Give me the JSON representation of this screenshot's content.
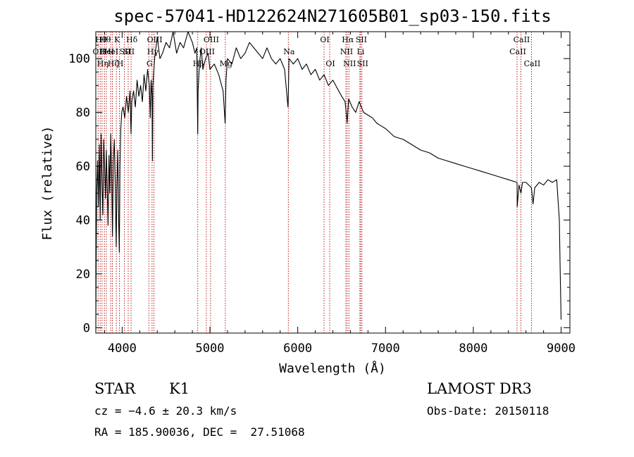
{
  "chart_data": {
    "type": "line",
    "title": "spec-57041-HD122624N271605B01_sp03-150.fits",
    "xlabel": "Wavelength (Å)",
    "ylabel": "Flux (relative)",
    "xlim": [
      3700,
      9100
    ],
    "ylim": [
      -2,
      110
    ],
    "xticks": [
      4000,
      5000,
      6000,
      7000,
      8000,
      9000
    ],
    "yticks": [
      0,
      20,
      40,
      60,
      80,
      100
    ],
    "grid": false,
    "series": [
      {
        "name": "spectrum",
        "x": [
          3700,
          3705,
          3710,
          3720,
          3730,
          3740,
          3750,
          3760,
          3770,
          3780,
          3790,
          3800,
          3810,
          3820,
          3830,
          3840,
          3850,
          3860,
          3870,
          3880,
          3890,
          3900,
          3910,
          3920,
          3933,
          3940,
          3950,
          3960,
          3968,
          3975,
          3985,
          3995,
          4010,
          4030,
          4050,
          4070,
          4090,
          4101,
          4110,
          4130,
          4150,
          4170,
          4190,
          4210,
          4230,
          4250,
          4270,
          4290,
          4310,
          4320,
          4330,
          4340,
          4345,
          4350,
          4370,
          4400,
          4430,
          4460,
          4500,
          4540,
          4580,
          4620,
          4660,
          4700,
          4750,
          4800,
          4830,
          4850,
          4861,
          4865,
          4880,
          4900,
          4920,
          4950,
          4980,
          5000,
          5050,
          5100,
          5150,
          5173,
          5183,
          5200,
          5250,
          5300,
          5350,
          5400,
          5450,
          5500,
          5550,
          5600,
          5650,
          5700,
          5750,
          5800,
          5850,
          5889,
          5893,
          5900,
          5950,
          6000,
          6050,
          6100,
          6150,
          6200,
          6250,
          6300,
          6350,
          6400,
          6450,
          6500,
          6540,
          6563,
          6580,
          6620,
          6660,
          6700,
          6750,
          6800,
          6850,
          6900,
          6950,
          7000,
          7100,
          7200,
          7300,
          7400,
          7500,
          7600,
          7700,
          7800,
          7900,
          8000,
          8100,
          8200,
          8300,
          8400,
          8498,
          8500,
          8520,
          8542,
          8560,
          8600,
          8662,
          8680,
          8700,
          8750,
          8800,
          8850,
          8900,
          8950,
          8980,
          8990,
          9000
        ],
        "y": [
          -1,
          28,
          50,
          62,
          45,
          68,
          40,
          72,
          55,
          42,
          70,
          60,
          48,
          66,
          52,
          38,
          64,
          50,
          72,
          58,
          34,
          62,
          70,
          56,
          30,
          52,
          66,
          40,
          28,
          60,
          74,
          80,
          82,
          78,
          86,
          80,
          88,
          72,
          84,
          88,
          82,
          92,
          86,
          90,
          84,
          94,
          88,
          96,
          90,
          78,
          92,
          86,
          62,
          90,
          100,
          108,
          100,
          102,
          106,
          104,
          110,
          102,
          106,
          104,
          110,
          106,
          102,
          104,
          72,
          88,
          98,
          104,
          96,
          100,
          102,
          96,
          98,
          94,
          88,
          76,
          92,
          100,
          98,
          104,
          100,
          102,
          106,
          104,
          102,
          100,
          104,
          100,
          98,
          100,
          96,
          82,
          86,
          100,
          98,
          100,
          96,
          98,
          94,
          96,
          92,
          94,
          90,
          92,
          89,
          86,
          84,
          76,
          85,
          82,
          80,
          84,
          80,
          79,
          78,
          76,
          75,
          74,
          71,
          70,
          68,
          66,
          65,
          63,
          62,
          61,
          60,
          59,
          58,
          57,
          56,
          55,
          54,
          45,
          53,
          50,
          54,
          54,
          52,
          46,
          52,
          54,
          53,
          55,
          54,
          55,
          40,
          20,
          3
        ]
      }
    ],
    "line_markers": [
      {
        "w": 3726,
        "label": "OII",
        "row": 1
      },
      {
        "w": 3750,
        "label": "Hθ",
        "row": 0
      },
      {
        "w": 3771,
        "label": "Hη",
        "row": 2
      },
      {
        "w": 3798,
        "label": "Hθ",
        "row": 0
      },
      {
        "w": 3820,
        "label": "HeI",
        "row": 1
      },
      {
        "w": 3869,
        "label": "HeI",
        "row": 1
      },
      {
        "w": 3889,
        "label": "Hζ",
        "row": 2
      },
      {
        "w": 3934,
        "label": "K",
        "row": 0
      },
      {
        "w": 3969,
        "label": "H",
        "row": 2
      },
      {
        "w": 4026,
        "label": "SII",
        "row": 1
      },
      {
        "w": 4069,
        "label": "SII",
        "row": 1
      },
      {
        "w": 4102,
        "label": "Hδ",
        "row": 0
      },
      {
        "w": 4304,
        "label": "G",
        "row": 2
      },
      {
        "w": 4341,
        "label": "Hγ",
        "row": 1
      },
      {
        "w": 4363,
        "label": "OIII",
        "row": 0
      },
      {
        "w": 4861,
        "label": "Hβ",
        "row": 2
      },
      {
        "w": 4959,
        "label": "OIII",
        "row": 1
      },
      {
        "w": 5007,
        "label": "OIII",
        "row": 0
      },
      {
        "w": 5175,
        "label": "Mg",
        "row": 2
      },
      {
        "w": 5893,
        "label": "Na",
        "row": 1
      },
      {
        "w": 6300,
        "label": "OI",
        "row": 0
      },
      {
        "w": 6364,
        "label": "OI",
        "row": 2
      },
      {
        "w": 6548,
        "label": "NII",
        "row": 1
      },
      {
        "w": 6563,
        "label": "Hα",
        "row": 0
      },
      {
        "w": 6583,
        "label": "NII",
        "row": 2
      },
      {
        "w": 6708,
        "label": "Li",
        "row": 1
      },
      {
        "w": 6716,
        "label": "SII",
        "row": 0
      },
      {
        "w": 6731,
        "label": "SII",
        "row": 2
      },
      {
        "w": 8498,
        "label": "CaII",
        "row": 1
      },
      {
        "w": 8542,
        "label": "CaII",
        "row": 0
      },
      {
        "w": 8662,
        "label": "CaII",
        "row": 2
      }
    ]
  },
  "info": {
    "object_class": "STAR",
    "subclass": "K1",
    "survey": "LAMOST DR3",
    "redshift": "cz = −4.6 ± 20.3 km/s",
    "obs_date": "Obs-Date: 20150118",
    "coords": "RA = 185.90036, DEC =  27.51068"
  },
  "colors": {
    "spectrum": "#000000",
    "marker": "#b00000",
    "axis": "#000000"
  }
}
